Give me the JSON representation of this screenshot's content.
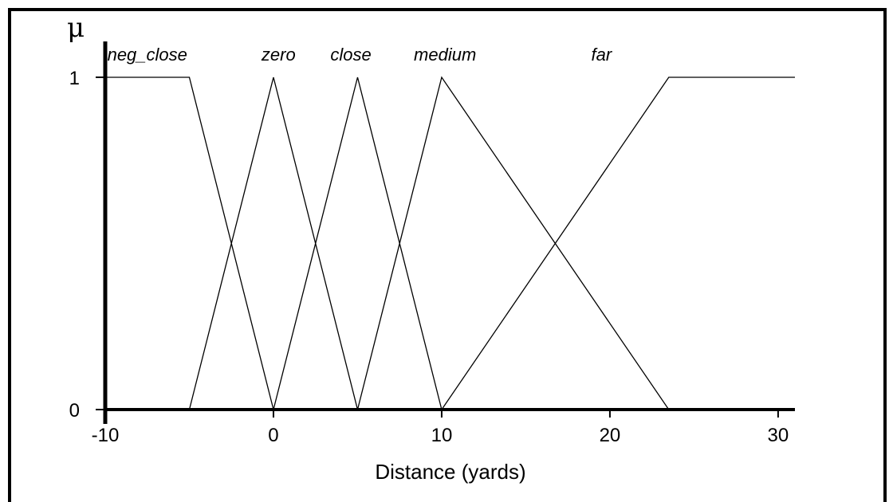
{
  "chart_data": {
    "type": "line",
    "title": "",
    "xlabel": "Distance (yards)",
    "ylabel": "μ",
    "xlim": [
      -10,
      31
    ],
    "ylim": [
      0,
      1
    ],
    "x_ticks": [
      -10,
      0,
      10,
      20,
      30
    ],
    "y_ticks": [
      0,
      1
    ],
    "grid": false,
    "series": [
      {
        "name": "neg_close",
        "points": [
          [
            -10,
            1
          ],
          [
            -5,
            1
          ],
          [
            0,
            0
          ]
        ]
      },
      {
        "name": "zero",
        "points": [
          [
            -5,
            0
          ],
          [
            0,
            1
          ],
          [
            5,
            0
          ]
        ]
      },
      {
        "name": "close",
        "points": [
          [
            0,
            0
          ],
          [
            5,
            1
          ],
          [
            10,
            0
          ]
        ]
      },
      {
        "name": "medium",
        "points": [
          [
            5,
            0
          ],
          [
            10,
            1
          ],
          [
            23.5,
            0
          ]
        ]
      },
      {
        "name": "far",
        "points": [
          [
            10,
            0
          ],
          [
            23.5,
            1
          ],
          [
            31,
            1
          ]
        ]
      }
    ],
    "series_label_x": [
      -7.5,
      0.3,
      4.6,
      10.2,
      19.5
    ]
  }
}
